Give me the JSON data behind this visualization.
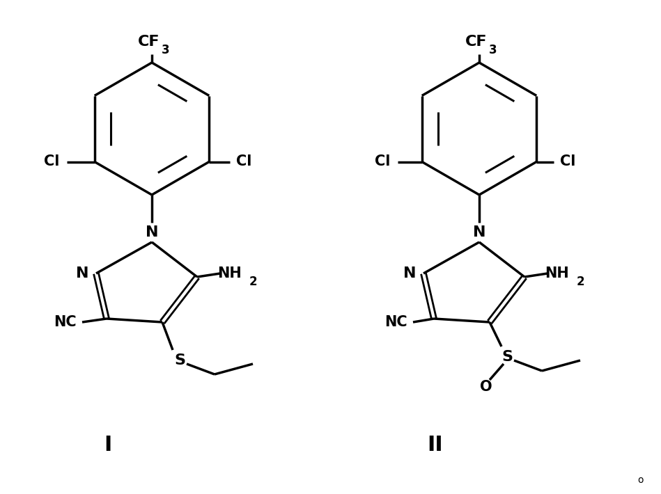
{
  "background_color": "#ffffff",
  "figure_width": 9.49,
  "figure_height": 7.1,
  "dpi": 100,
  "label_I": "I",
  "label_II": "II",
  "small_o": "o"
}
